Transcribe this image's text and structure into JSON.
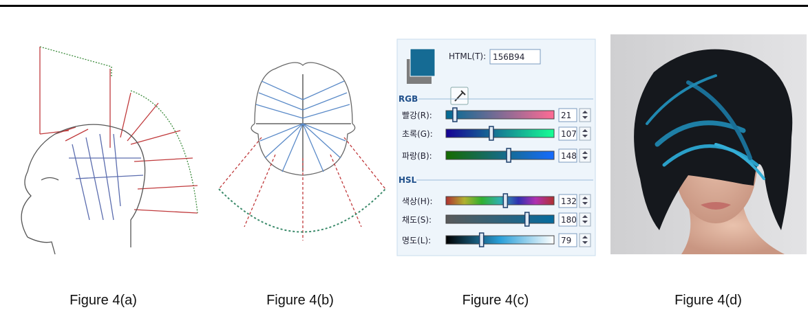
{
  "figures": [
    {
      "caption": "Figure 4(a)"
    },
    {
      "caption": "Figure 4(b)"
    },
    {
      "caption": "Figure 4(c)"
    },
    {
      "caption": "Figure 4(d)"
    }
  ],
  "color_picker": {
    "html_label": "HTML(T):",
    "html_value": "156B94",
    "rgb_header": "RGB",
    "rgb": [
      {
        "label": "빨강(R):",
        "value": 21
      },
      {
        "label": "초록(G):",
        "value": 107
      },
      {
        "label": "파랑(B):",
        "value": 148
      }
    ],
    "hsl_header": "HSL",
    "hsl": [
      {
        "label": "색상(H):",
        "value": 132
      },
      {
        "label": "채도(S):",
        "value": 180
      },
      {
        "label": "명도(L):",
        "value": 79
      }
    ]
  }
}
